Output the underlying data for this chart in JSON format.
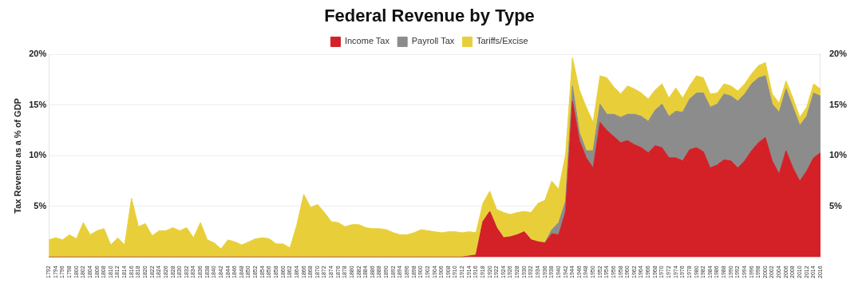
{
  "chart_data": {
    "type": "area",
    "title": "Federal Revenue by Type",
    "ylabel": "Tax Revenue as a % of GDP",
    "stacked": true,
    "grid": "y",
    "legend": "top",
    "categories": [
      "1792",
      "1794",
      "1796",
      "1798",
      "1800",
      "1802",
      "1804",
      "1806",
      "1808",
      "1810",
      "1812",
      "1814",
      "1816",
      "1818",
      "1820",
      "1822",
      "1824",
      "1826",
      "1828",
      "1830",
      "1832",
      "1834",
      "1836",
      "1838",
      "1840",
      "1842",
      "1844",
      "1846",
      "1848",
      "1850",
      "1852",
      "1854",
      "1856",
      "1858",
      "1860",
      "1862",
      "1864",
      "1866",
      "1868",
      "1870",
      "1872",
      "1874",
      "1876",
      "1878",
      "1880",
      "1882",
      "1884",
      "1886",
      "1888",
      "1890",
      "1892",
      "1894",
      "1896",
      "1898",
      "1900",
      "1902",
      "1904",
      "1906",
      "1908",
      "1910",
      "1912",
      "1914",
      "1916",
      "1918",
      "1920",
      "1922",
      "1924",
      "1926",
      "1928",
      "1930",
      "1932",
      "1934",
      "1936",
      "1938",
      "1940",
      "1942",
      "1944",
      "1946",
      "1948",
      "1950",
      "1952",
      "1954",
      "1956",
      "1958",
      "1960",
      "1962",
      "1964",
      "1966",
      "1968",
      "1970",
      "1972",
      "1974",
      "1976",
      "1978",
      "1980",
      "1982",
      "1984",
      "1986",
      "1988",
      "1990",
      "1992",
      "1994",
      "1996",
      "1998",
      "2000",
      "2002",
      "2004",
      "2006",
      "2008",
      "2010",
      "2012",
      "2014",
      "2016"
    ],
    "ylim": [
      0,
      20
    ],
    "yticks": [
      {
        "value": 5,
        "label": "5%"
      },
      {
        "value": 10,
        "label": "10%"
      },
      {
        "value": 15,
        "label": "15%"
      },
      {
        "value": 20,
        "label": "20%"
      }
    ],
    "y2lim": [
      0,
      20
    ],
    "y2ticks": [
      {
        "value": 5,
        "label": "5%"
      },
      {
        "value": 10,
        "label": "10%"
      },
      {
        "value": 15,
        "label": "15%"
      },
      {
        "value": 20,
        "label": "20%"
      }
    ],
    "series": [
      {
        "name": "Income Tax",
        "color": "#d42027",
        "values": [
          0,
          0,
          0,
          0,
          0,
          0,
          0,
          0,
          0,
          0,
          0,
          0,
          0,
          0,
          0,
          0,
          0,
          0,
          0,
          0,
          0,
          0,
          0,
          0,
          0,
          0,
          0,
          0,
          0,
          0,
          0,
          0,
          0,
          0,
          0,
          0,
          0,
          0,
          0,
          0,
          0,
          0,
          0,
          0,
          0,
          0,
          0,
          0,
          0,
          0,
          0,
          0,
          0,
          0,
          0,
          0,
          0,
          0,
          0,
          0,
          0,
          0.1,
          0.2,
          3.5,
          4.5,
          2.9,
          1.9,
          2.0,
          2.2,
          2.5,
          1.7,
          1.5,
          1.4,
          2.3,
          2.2,
          4.5,
          15.4,
          11.5,
          9.8,
          8.8,
          13.3,
          12.5,
          11.9,
          11.3,
          11.5,
          11.1,
          10.8,
          10.3,
          11.0,
          10.8,
          9.8,
          9.8,
          9.5,
          10.6,
          10.8,
          10.4,
          8.8,
          9.1,
          9.6,
          9.5,
          8.8,
          9.5,
          10.5,
          11.3,
          11.8,
          9.5,
          8.2,
          10.5,
          8.8,
          7.5,
          8.5,
          9.8,
          10.3
        ]
      },
      {
        "name": "Payroll Tax",
        "color": "#8c8c8c",
        "values": [
          0,
          0,
          0,
          0,
          0,
          0,
          0,
          0,
          0,
          0,
          0,
          0,
          0,
          0,
          0,
          0,
          0,
          0,
          0,
          0,
          0,
          0,
          0,
          0,
          0,
          0,
          0,
          0,
          0,
          0,
          0,
          0,
          0,
          0,
          0,
          0,
          0,
          0,
          0,
          0,
          0,
          0,
          0,
          0,
          0,
          0,
          0,
          0,
          0,
          0,
          0,
          0,
          0,
          0,
          0,
          0,
          0,
          0,
          0,
          0,
          0,
          0,
          0,
          0,
          0,
          0,
          0,
          0,
          0,
          0,
          0,
          0,
          0,
          0.4,
          1.2,
          1.0,
          1.5,
          0.8,
          0.7,
          1.7,
          1.8,
          1.6,
          2.2,
          2.5,
          2.6,
          3.0,
          3.1,
          3.1,
          3.5,
          4.3,
          4.1,
          4.6,
          4.8,
          5.0,
          5.4,
          5.8,
          6.0,
          6.0,
          6.5,
          6.4,
          6.6,
          6.6,
          6.6,
          6.4,
          6.1,
          5.6,
          6.1,
          6.1,
          6.0,
          5.5,
          5.4,
          6.4,
          5.6
        ]
      },
      {
        "name": "Tariffs/Excise",
        "color": "#e8cf3a",
        "values": [
          1.7,
          1.9,
          1.7,
          2.2,
          1.8,
          3.4,
          2.2,
          2.6,
          2.8,
          1.2,
          1.9,
          1.2,
          5.8,
          3.0,
          3.3,
          2.1,
          2.6,
          2.6,
          2.9,
          2.6,
          2.9,
          1.9,
          3.4,
          1.7,
          1.4,
          0.8,
          1.7,
          1.5,
          1.2,
          1.5,
          1.8,
          1.9,
          1.8,
          1.3,
          1.3,
          0.9,
          3.2,
          6.2,
          4.9,
          5.2,
          4.4,
          3.5,
          3.4,
          3.0,
          3.2,
          3.2,
          2.9,
          2.8,
          2.8,
          2.7,
          2.4,
          2.2,
          2.2,
          2.4,
          2.7,
          2.6,
          2.5,
          2.4,
          2.5,
          2.5,
          2.4,
          2.4,
          2.2,
          1.8,
          2.0,
          1.8,
          2.5,
          2.2,
          2.2,
          2.0,
          2.7,
          3.8,
          4.2,
          4.8,
          3.3,
          4.6,
          2.8,
          4.2,
          4.3,
          2.8,
          2.8,
          3.6,
          2.7,
          2.3,
          2.8,
          2.5,
          2.3,
          2.2,
          2.0,
          2.0,
          1.8,
          2.3,
          1.4,
          1.3,
          1.7,
          1.5,
          1.3,
          1.1,
          1.0,
          1.0,
          1.0,
          1.0,
          1.0,
          1.2,
          1.3,
          1.0,
          0.9,
          0.8,
          0.9,
          0.8,
          0.9,
          0.9,
          0.7
        ]
      }
    ]
  }
}
